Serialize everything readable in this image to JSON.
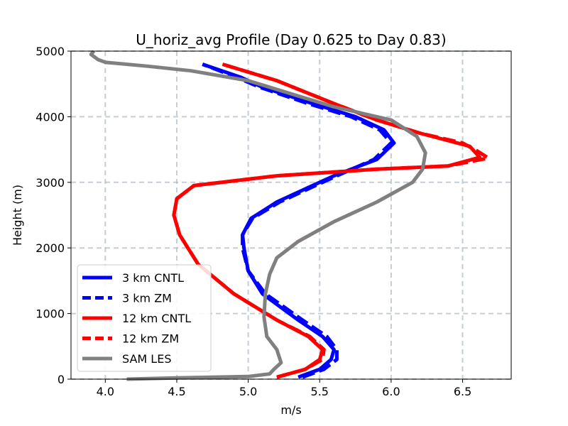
{
  "chart_data": {
    "type": "line",
    "title": "U_horiz_avg Profile (Day 0.625 to Day 0.83)",
    "xlabel": "m/s",
    "ylabel": "Height (m)",
    "xlim": [
      3.76,
      6.84
    ],
    "ylim": [
      0,
      5000
    ],
    "xticks": [
      4.0,
      4.5,
      5.0,
      5.5,
      6.0,
      6.5
    ],
    "xtick_labels": [
      "4.0",
      "4.5",
      "5.0",
      "5.5",
      "6.0",
      "6.5"
    ],
    "yticks": [
      0,
      1000,
      2000,
      3000,
      4000,
      5000
    ],
    "ytick_labels": [
      "0",
      "1000",
      "2000",
      "3000",
      "4000",
      "5000"
    ],
    "grid": true,
    "legend_position": "lower-left",
    "series": [
      {
        "name": "3 km CNTL",
        "color": "#0000ff",
        "dash": "solid",
        "points": [
          [
            5.35,
            30
          ],
          [
            5.5,
            150
          ],
          [
            5.58,
            300
          ],
          [
            5.6,
            450
          ],
          [
            5.52,
            650
          ],
          [
            5.35,
            900
          ],
          [
            5.1,
            1300
          ],
          [
            5.0,
            1650
          ],
          [
            4.97,
            2000
          ],
          [
            4.96,
            2200
          ],
          [
            5.02,
            2450
          ],
          [
            5.2,
            2700
          ],
          [
            5.4,
            2900
          ],
          [
            5.6,
            3100
          ],
          [
            5.9,
            3350
          ],
          [
            6.02,
            3600
          ],
          [
            5.95,
            3800
          ],
          [
            5.75,
            4000
          ],
          [
            5.45,
            4200
          ],
          [
            5.1,
            4450
          ],
          [
            4.95,
            4600
          ],
          [
            4.68,
            4800
          ]
        ]
      },
      {
        "name": "3 km ZM",
        "color": "#0000ff",
        "dash": "dashed",
        "points": [
          [
            5.38,
            30
          ],
          [
            5.53,
            150
          ],
          [
            5.62,
            300
          ],
          [
            5.62,
            450
          ],
          [
            5.55,
            650
          ],
          [
            5.38,
            900
          ],
          [
            5.12,
            1300
          ],
          [
            5.0,
            1650
          ],
          [
            4.96,
            2000
          ],
          [
            4.96,
            2200
          ],
          [
            5.03,
            2450
          ],
          [
            5.22,
            2700
          ],
          [
            5.42,
            2900
          ],
          [
            5.62,
            3100
          ],
          [
            5.88,
            3350
          ],
          [
            6.0,
            3600
          ],
          [
            5.92,
            3800
          ],
          [
            5.72,
            4000
          ],
          [
            5.42,
            4200
          ],
          [
            5.08,
            4450
          ],
          [
            4.92,
            4600
          ],
          [
            4.68,
            4800
          ]
        ]
      },
      {
        "name": "12 km CNTL",
        "color": "#ff0000",
        "dash": "solid",
        "points": [
          [
            5.2,
            30
          ],
          [
            5.4,
            150
          ],
          [
            5.5,
            300
          ],
          [
            5.52,
            450
          ],
          [
            5.42,
            650
          ],
          [
            5.2,
            900
          ],
          [
            4.9,
            1300
          ],
          [
            4.65,
            1750
          ],
          [
            4.52,
            2200
          ],
          [
            4.48,
            2500
          ],
          [
            4.5,
            2750
          ],
          [
            4.62,
            2950
          ],
          [
            5.2,
            3100
          ],
          [
            5.9,
            3200
          ],
          [
            6.4,
            3250
          ],
          [
            6.62,
            3380
          ],
          [
            6.55,
            3550
          ],
          [
            6.2,
            3750
          ],
          [
            5.9,
            3950
          ],
          [
            5.6,
            4200
          ],
          [
            5.2,
            4550
          ],
          [
            4.82,
            4800
          ]
        ]
      },
      {
        "name": "12 km ZM",
        "color": "#ff0000",
        "dash": "dashed",
        "points": [
          [
            5.2,
            30
          ],
          [
            5.4,
            150
          ],
          [
            5.52,
            300
          ],
          [
            5.53,
            450
          ],
          [
            5.43,
            650
          ],
          [
            5.2,
            900
          ],
          [
            4.9,
            1300
          ],
          [
            4.65,
            1750
          ],
          [
            4.52,
            2200
          ],
          [
            4.48,
            2500
          ],
          [
            4.5,
            2750
          ],
          [
            4.62,
            2950
          ],
          [
            5.2,
            3100
          ],
          [
            5.9,
            3200
          ],
          [
            6.4,
            3250
          ],
          [
            6.68,
            3370
          ],
          [
            6.6,
            3480
          ],
          [
            6.5,
            3600
          ],
          [
            6.2,
            3750
          ],
          [
            5.9,
            3950
          ],
          [
            5.6,
            4200
          ],
          [
            5.2,
            4550
          ],
          [
            4.82,
            4800
          ]
        ]
      },
      {
        "name": "SAM LES",
        "color": "#808080",
        "dash": "solid",
        "points": [
          [
            4.15,
            0
          ],
          [
            4.5,
            20
          ],
          [
            5.0,
            40
          ],
          [
            5.15,
            80
          ],
          [
            5.18,
            150
          ],
          [
            5.23,
            250
          ],
          [
            5.2,
            450
          ],
          [
            5.13,
            650
          ],
          [
            5.11,
            950
          ],
          [
            5.12,
            1300
          ],
          [
            5.15,
            1600
          ],
          [
            5.2,
            1850
          ],
          [
            5.35,
            2100
          ],
          [
            5.6,
            2400
          ],
          [
            5.9,
            2700
          ],
          [
            6.15,
            3000
          ],
          [
            6.22,
            3200
          ],
          [
            6.24,
            3450
          ],
          [
            6.18,
            3700
          ],
          [
            6.0,
            3950
          ],
          [
            5.6,
            4150
          ],
          [
            5.3,
            4350
          ],
          [
            5.0,
            4550
          ],
          [
            4.6,
            4700
          ],
          [
            4.3,
            4770
          ],
          [
            4.0,
            4830
          ],
          [
            3.95,
            4870
          ],
          [
            3.9,
            4950
          ],
          [
            3.92,
            5000
          ]
        ]
      }
    ]
  }
}
